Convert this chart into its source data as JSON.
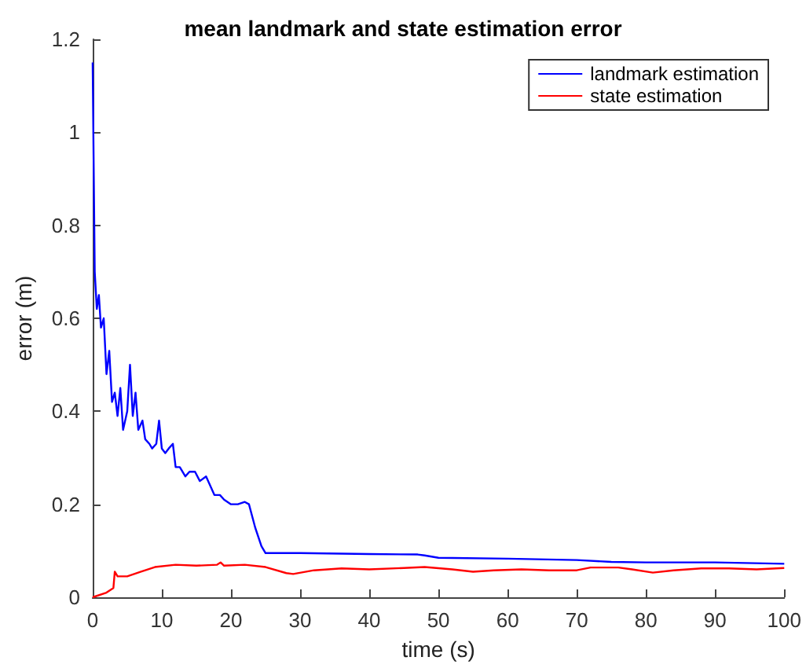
{
  "chart_data": {
    "type": "line",
    "title": "mean landmark and state estimation error",
    "xlabel": "time (s)",
    "ylabel": "error (m)",
    "xlim": [
      0,
      100
    ],
    "xticks": [
      0,
      10,
      20,
      30,
      40,
      50,
      60,
      70,
      80,
      90,
      100
    ],
    "ylim": [
      0,
      1.2
    ],
    "yticks": [
      0,
      0.2,
      0.4,
      0.6,
      0.8,
      1,
      1.2
    ],
    "grid": false,
    "legend": "top right",
    "marker": "none",
    "line_style": "solid",
    "series": [
      {
        "name": "landmark estimation",
        "color": "#0000ff",
        "x": [
          0,
          0.3,
          0.6,
          0.9,
          1.2,
          1.6,
          2,
          2.4,
          2.8,
          3.2,
          3.6,
          4,
          4.4,
          5,
          5.4,
          5.8,
          6.2,
          6.6,
          7.2,
          7.6,
          8.2,
          8.6,
          9.2,
          9.6,
          10,
          10.5,
          11,
          11.6,
          12,
          12.6,
          13.4,
          14,
          14.8,
          15.5,
          16.4,
          17,
          17.6,
          18.4,
          19,
          20,
          21,
          22,
          22.6,
          23.5,
          24.4,
          25,
          30,
          40,
          47,
          48,
          50,
          60,
          70,
          75,
          80,
          90,
          100
        ],
        "values": [
          1.15,
          0.7,
          0.62,
          0.65,
          0.58,
          0.6,
          0.48,
          0.53,
          0.42,
          0.44,
          0.39,
          0.45,
          0.36,
          0.4,
          0.5,
          0.39,
          0.44,
          0.36,
          0.38,
          0.34,
          0.33,
          0.32,
          0.33,
          0.38,
          0.32,
          0.31,
          0.32,
          0.33,
          0.28,
          0.28,
          0.26,
          0.27,
          0.27,
          0.25,
          0.26,
          0.24,
          0.22,
          0.22,
          0.21,
          0.2,
          0.2,
          0.205,
          0.2,
          0.15,
          0.11,
          0.095,
          0.095,
          0.093,
          0.092,
          0.09,
          0.085,
          0.083,
          0.08,
          0.076,
          0.075,
          0.075,
          0.072
        ]
      },
      {
        "name": "state estimation",
        "color": "#ff0000",
        "x": [
          0,
          2,
          3,
          3.2,
          3.6,
          5,
          7,
          9,
          12,
          15,
          18,
          18.5,
          19,
          22,
          25,
          28,
          29,
          32,
          36,
          40,
          45,
          48,
          52,
          55,
          58,
          62,
          66,
          70,
          72,
          76,
          78,
          81,
          84,
          88,
          92,
          96,
          100
        ],
        "values": [
          0,
          0.01,
          0.02,
          0.055,
          0.045,
          0.045,
          0.055,
          0.065,
          0.07,
          0.068,
          0.07,
          0.075,
          0.068,
          0.07,
          0.065,
          0.052,
          0.05,
          0.058,
          0.062,
          0.06,
          0.063,
          0.065,
          0.06,
          0.055,
          0.058,
          0.06,
          0.058,
          0.058,
          0.064,
          0.064,
          0.06,
          0.053,
          0.058,
          0.062,
          0.062,
          0.06,
          0.063
        ]
      }
    ]
  }
}
